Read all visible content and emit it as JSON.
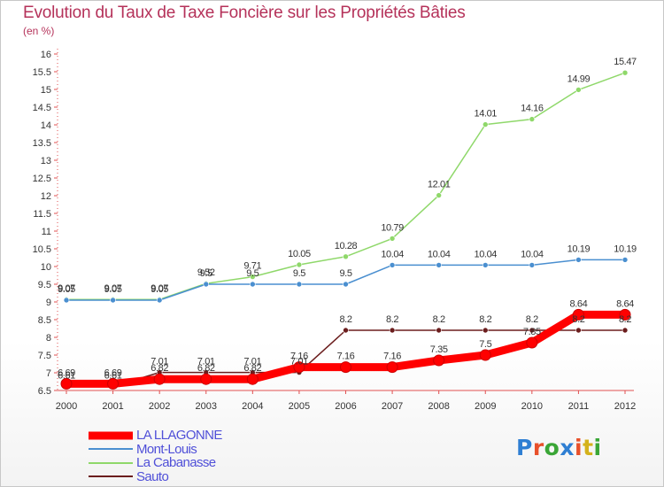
{
  "title": "Evolution du Taux de Taxe Foncière sur les Propriétés Bâties",
  "subtitle": "(en %)",
  "logo": {
    "text": "Proxiti",
    "colors": [
      "#2f7fd3",
      "#e8502a",
      "#3aa636",
      "#2f7fd3",
      "#e8502a",
      "#d4b21c",
      "#3aa636"
    ]
  },
  "chart_data": {
    "type": "line",
    "x": [
      "2000",
      "2001",
      "2002",
      "2003",
      "2004",
      "2005",
      "2006",
      "2007",
      "2008",
      "2009",
      "2010",
      "2011",
      "2012"
    ],
    "ylim": [
      6.5,
      16
    ],
    "yticks": [
      "6.5",
      "7",
      "7.5",
      "8",
      "8.5",
      "9",
      "9.5",
      "10",
      "10.5",
      "11",
      "11.5",
      "12",
      "12.5",
      "13",
      "13.5",
      "14",
      "14.5",
      "15",
      "15.5",
      "16"
    ],
    "grid": "none",
    "legend_position": "bottom-left",
    "series": [
      {
        "name": "LA LLAGONNE",
        "color": "#ff0000",
        "values": [
          6.69,
          6.69,
          6.82,
          6.82,
          6.82,
          7.16,
          7.16,
          7.16,
          7.35,
          7.5,
          7.85,
          8.64,
          8.64
        ],
        "labels": [
          "6.69",
          "6.69",
          "6.82",
          "6.82",
          "6.82",
          "7.16",
          "7.16",
          "7.16",
          "7.35",
          "7.5",
          "7.85",
          "8.64",
          "8.64"
        ]
      },
      {
        "name": "Mont-Louis",
        "color": "#4a8fd0",
        "values": [
          9.05,
          9.05,
          9.05,
          9.5,
          9.5,
          9.5,
          9.5,
          10.04,
          10.04,
          10.04,
          10.04,
          10.19,
          10.19
        ],
        "labels": [
          "9.05",
          "9.05",
          "9.05",
          "9.5",
          "9.5",
          "9.5",
          "9.5",
          "10.04",
          "10.04",
          "10.04",
          "10.04",
          "10.19",
          "10.19"
        ]
      },
      {
        "name": "La Cabanasse",
        "color": "#8fd86a",
        "values": [
          9.07,
          9.07,
          9.07,
          9.52,
          9.71,
          10.05,
          10.28,
          10.79,
          12.01,
          14.01,
          14.16,
          14.99,
          15.47
        ],
        "labels": [
          "9.07",
          "9.07",
          "9.07",
          "9.52",
          "9.71",
          "10.05",
          "10.28",
          "10.79",
          "12.01",
          "14.01",
          "14.16",
          "14.99",
          "15.47"
        ]
      },
      {
        "name": "Sauto",
        "color": "#6b1d1d",
        "values": [
          6.61,
          6.61,
          7.01,
          7.01,
          7.01,
          7.01,
          8.2,
          8.2,
          8.2,
          8.2,
          8.2,
          8.2,
          8.2
        ],
        "labels": [
          "6.61",
          "6.61",
          "7.01",
          "7.01",
          "7.01",
          "7.01",
          "8.2",
          "8.2",
          "8.2",
          "8.2",
          "8.2",
          "8.2",
          "8.2"
        ]
      }
    ]
  }
}
